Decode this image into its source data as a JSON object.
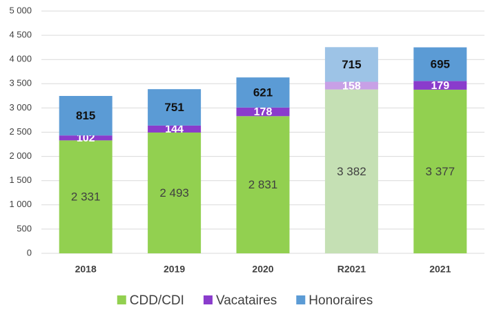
{
  "chart_data": {
    "type": "stacked_bar",
    "categories": [
      "2018",
      "2019",
      "2020",
      "R2021",
      "2021"
    ],
    "series": [
      {
        "name": "CDD/CDI",
        "color": "#92d050",
        "colors": [
          "#92d050",
          "#92d050",
          "#92d050",
          "#c5e0b4",
          "#92d050"
        ],
        "values": [
          2331,
          2493,
          2831,
          3382,
          3377
        ],
        "value_labels": [
          "2 331",
          "2 493",
          "2 831",
          "3 382",
          "3 377"
        ]
      },
      {
        "name": "Vacataires",
        "color": "#8a3ccc",
        "colors": [
          "#8a3ccc",
          "#8a3ccc",
          "#8a3ccc",
          "#c8a0e6",
          "#8a3ccc"
        ],
        "values": [
          102,
          144,
          178,
          158,
          179
        ]
      },
      {
        "name": "Honoraires",
        "color": "#5b9bd5",
        "colors": [
          "#5b9bd5",
          "#5b9bd5",
          "#5b9bd5",
          "#9dc3e6",
          "#5b9bd5"
        ],
        "values": [
          815,
          751,
          621,
          715,
          695
        ]
      }
    ],
    "ylim": [
      0,
      5000
    ],
    "yticks": [
      0,
      500,
      {
        "value": 1000,
        "label": "1 000"
      },
      {
        "value": 1500,
        "label": "1 500"
      },
      {
        "value": 2000,
        "label": "2 000"
      },
      {
        "value": 2500,
        "label": "2 500"
      },
      {
        "value": 3000,
        "label": "3 000"
      },
      {
        "value": 3500,
        "label": "3 500"
      },
      {
        "value": 4000,
        "label": "4 000"
      },
      {
        "value": 4500,
        "label": "4 500"
      },
      {
        "value": 5000,
        "label": "5 000"
      }
    ],
    "grid": true,
    "legend": "bottom"
  }
}
